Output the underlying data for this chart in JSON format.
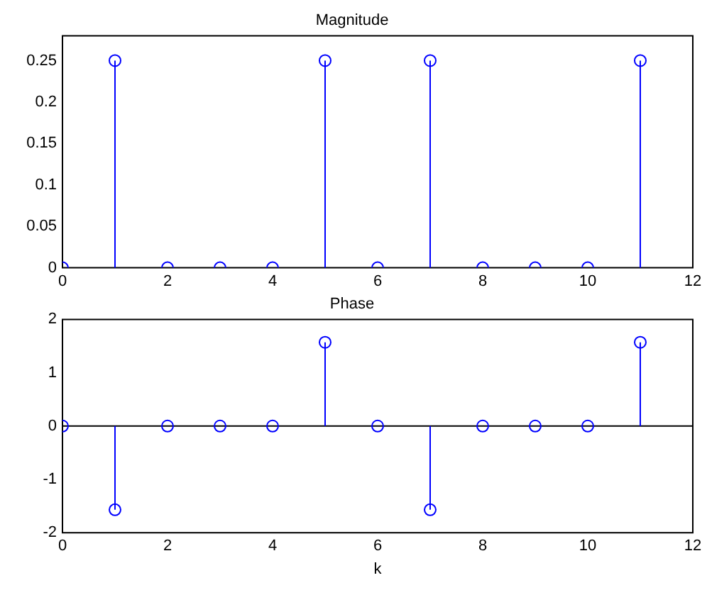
{
  "chart_data": [
    {
      "type": "lollipop",
      "title": "Magnitude",
      "x": [
        0,
        1,
        2,
        3,
        4,
        5,
        6,
        7,
        8,
        9,
        10,
        11
      ],
      "marker": "circle",
      "series": [
        {
          "color": "#0000ff",
          "values": [
            0,
            0.25,
            0,
            0,
            0,
            0.25,
            0,
            0.25,
            0,
            0,
            0,
            0.25
          ]
        }
      ],
      "xlim": [
        0,
        12
      ],
      "xticks": [
        0,
        2,
        4,
        6,
        8,
        10,
        12
      ],
      "ylim": [
        0,
        0.28
      ],
      "yticks": [
        0,
        0.05,
        0.1,
        0.15,
        0.2,
        0.25
      ],
      "grid": false,
      "legend": false
    },
    {
      "type": "lollipop",
      "title": "Phase",
      "xlabel": "k",
      "x": [
        0,
        1,
        2,
        3,
        4,
        5,
        6,
        7,
        8,
        9,
        10,
        11
      ],
      "marker": "circle",
      "series": [
        {
          "color": "#0000ff",
          "values": [
            0,
            -1.57,
            0,
            0,
            0,
            1.57,
            0,
            -1.57,
            0,
            0,
            0,
            1.57
          ]
        }
      ],
      "xlim": [
        0,
        12
      ],
      "xticks": [
        0,
        2,
        4,
        6,
        8,
        10,
        12
      ],
      "ylim": [
        -2,
        2
      ],
      "yticks": [
        -2,
        -1,
        0,
        1,
        2
      ],
      "grid": false,
      "legend": false,
      "ref_lines": [
        {
          "axis": "y",
          "value": 0,
          "color": "#000000"
        }
      ]
    }
  ]
}
